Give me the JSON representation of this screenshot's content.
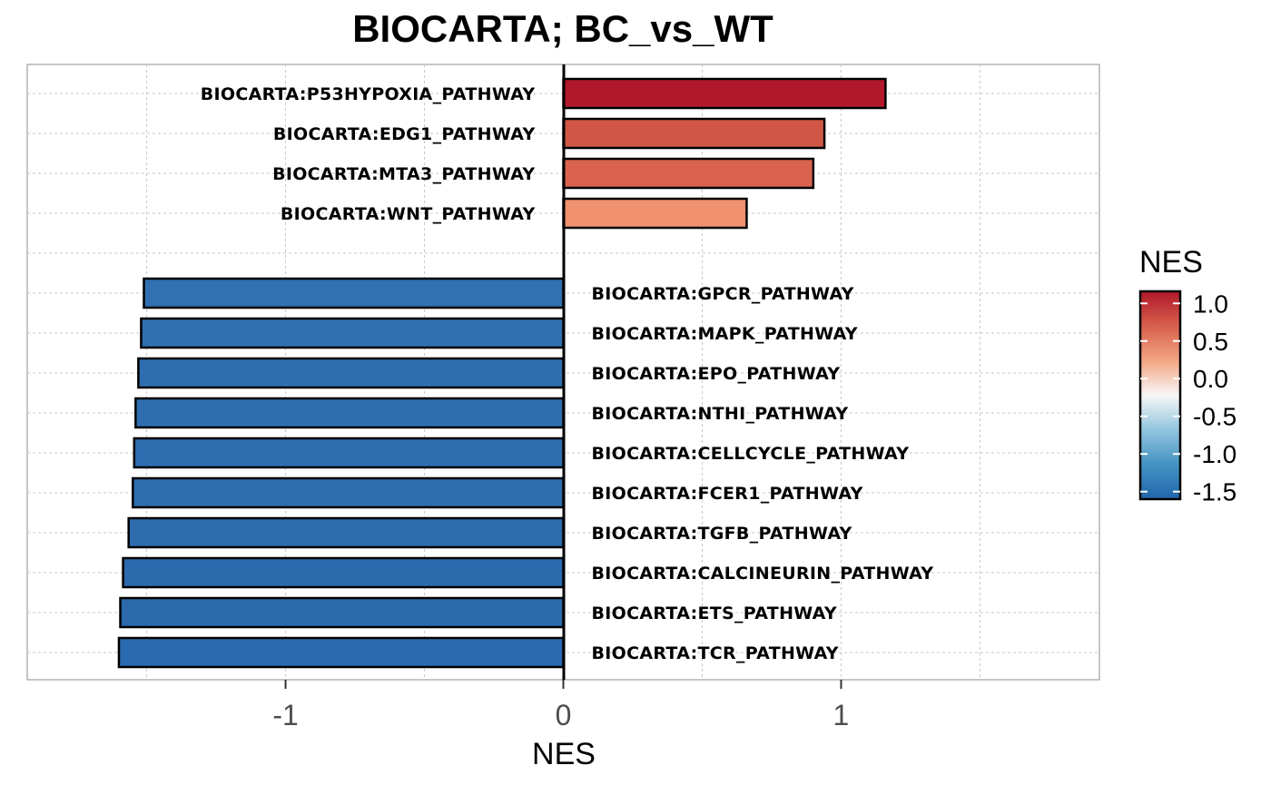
{
  "chart_data": {
    "type": "bar",
    "orientation": "horizontal",
    "title": "BIOCARTA; BC_vs_WT",
    "xlabel": "NES",
    "ylabel": "",
    "xlim": [
      -1.93,
      1.93
    ],
    "x_ticks": [
      -1,
      0,
      1
    ],
    "x_tick_labels": [
      "-1",
      "0",
      "1"
    ],
    "grid": true,
    "categories": [
      "BIOCARTA:P53HYPOXIA_PATHWAY",
      "BIOCARTA:EDG1_PATHWAY",
      "BIOCARTA:MTA3_PATHWAY",
      "BIOCARTA:WNT_PATHWAY",
      "",
      "BIOCARTA:GPCR_PATHWAY",
      "BIOCARTA:MAPK_PATHWAY",
      "BIOCARTA:EPO_PATHWAY",
      "BIOCARTA:NTHI_PATHWAY",
      "BIOCARTA:CELLCYCLE_PATHWAY",
      "BIOCARTA:FCER1_PATHWAY",
      "BIOCARTA:TGFB_PATHWAY",
      "BIOCARTA:CALCINEURIN_PATHWAY",
      "BIOCARTA:ETS_PATHWAY",
      "BIOCARTA:TCR_PATHWAY"
    ],
    "values": [
      1.16,
      0.94,
      0.9,
      0.66,
      null,
      -1.51,
      -1.52,
      -1.53,
      -1.54,
      -1.545,
      -1.55,
      -1.565,
      -1.585,
      -1.595,
      -1.6
    ],
    "colors": [
      "#b2182b",
      "#d05746",
      "#d9634f",
      "#f09170",
      null,
      "#3170b2",
      "#3070b1",
      "#2f6fb1",
      "#2e6eb0",
      "#2e6eb0",
      "#2d6db0",
      "#2c6caf",
      "#2a6bae",
      "#2a6aad",
      "#2969ad"
    ],
    "legend": {
      "title": "NES",
      "position": "right",
      "labels": [
        "1.0",
        "0.5",
        "0.0",
        "-0.5",
        "-1.0",
        "-1.5"
      ],
      "values": [
        1.0,
        0.5,
        0.0,
        -0.5,
        -1.0,
        -1.5
      ],
      "range": [
        -1.6,
        1.16
      ],
      "gradient": [
        "#b2182b",
        "#d6604d",
        "#f4a582",
        "#f7f7f7",
        "#92c5de",
        "#4393c3",
        "#2166ac"
      ]
    }
  }
}
